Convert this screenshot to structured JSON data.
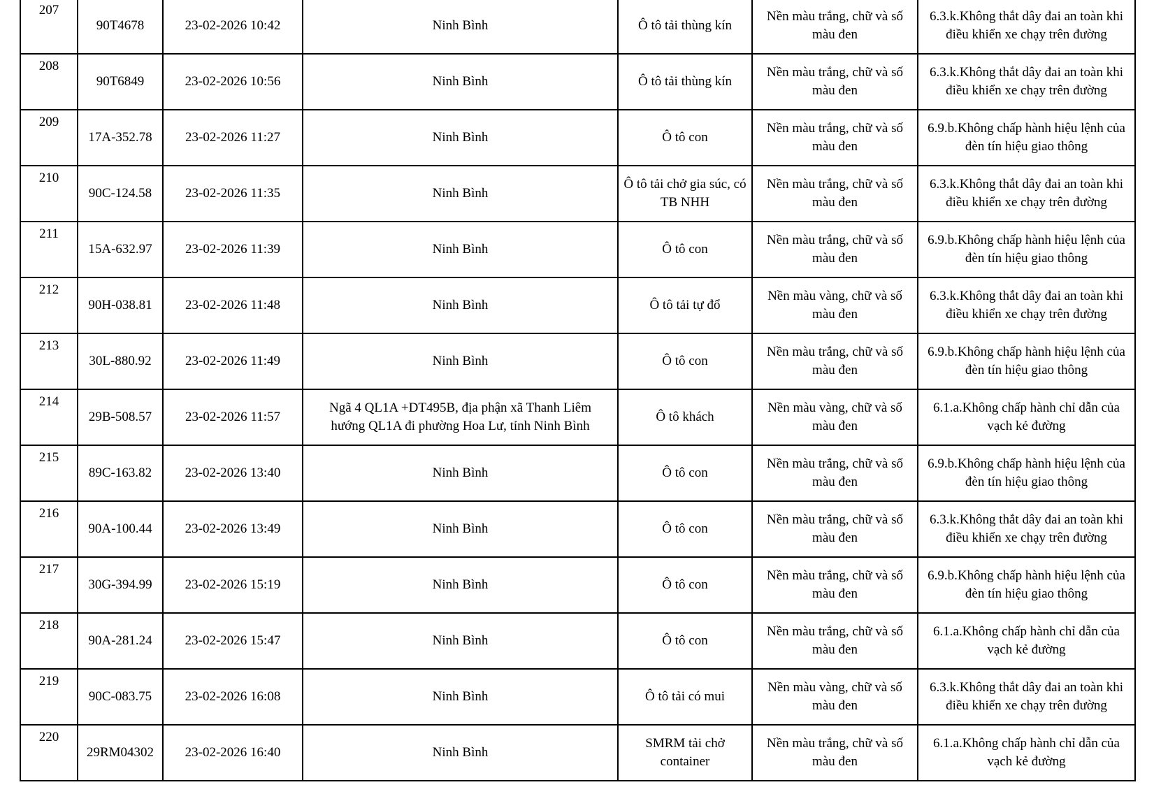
{
  "page": {
    "background_color": "#ffffff",
    "text_color": "#000000",
    "border_color": "#000000"
  },
  "table": {
    "column_keys": [
      "index",
      "plate",
      "datetime",
      "location",
      "vehicle",
      "plate_color",
      "violation"
    ],
    "rows": [
      {
        "index": "207",
        "plate": "90T4678",
        "datetime": "23-02-2026 10:42",
        "location": "Ninh Bình",
        "vehicle": "Ô tô tải thùng kín",
        "plate_color": "Nền màu trắng, chữ và số\nmàu đen",
        "violation": "6.3.k.Không thắt dây đai an toàn khi\nđiều khiển xe chạy trên đường"
      },
      {
        "index": "208",
        "plate": "90T6849",
        "datetime": "23-02-2026 10:56",
        "location": "Ninh Bình",
        "vehicle": "Ô tô tải thùng kín",
        "plate_color": "Nền màu trắng, chữ và số\nmàu đen",
        "violation": "6.3.k.Không thắt dây đai an toàn khi\nđiều khiển xe chạy trên đường"
      },
      {
        "index": "209",
        "plate": "17A-352.78",
        "datetime": "23-02-2026 11:27",
        "location": "Ninh Bình",
        "vehicle": "Ô tô con",
        "plate_color": "Nền màu trắng, chữ và số\nmàu đen",
        "violation": "6.9.b.Không chấp hành hiệu lệnh của\nđèn tín hiệu giao thông"
      },
      {
        "index": "210",
        "plate": "90C-124.58",
        "datetime": "23-02-2026 11:35",
        "location": "Ninh Bình",
        "vehicle": "Ô tô tải chở gia súc, có\nTB NHH",
        "plate_color": "Nền màu trắng, chữ và số\nmàu đen",
        "violation": "6.3.k.Không thắt dây đai an toàn khi\nđiều khiển xe chạy trên đường"
      },
      {
        "index": "211",
        "plate": "15A-632.97",
        "datetime": "23-02-2026 11:39",
        "location": "Ninh Bình",
        "vehicle": "Ô tô con",
        "plate_color": "Nền màu trắng, chữ và số\nmàu đen",
        "violation": "6.9.b.Không chấp hành hiệu lệnh của\nđèn tín hiệu giao thông"
      },
      {
        "index": "212",
        "plate": "90H-038.81",
        "datetime": "23-02-2026 11:48",
        "location": "Ninh Bình",
        "vehicle": "Ô tô tải tự đổ",
        "plate_color": "Nền màu vàng, chữ và số\nmàu đen",
        "violation": "6.3.k.Không thắt dây đai an toàn khi\nđiều khiển xe chạy trên đường"
      },
      {
        "index": "213",
        "plate": "30L-880.92",
        "datetime": "23-02-2026 11:49",
        "location": "Ninh Bình",
        "vehicle": "Ô tô con",
        "plate_color": "Nền màu trắng, chữ và số\nmàu đen",
        "violation": "6.9.b.Không chấp hành hiệu lệnh của\nđèn tín hiệu giao thông"
      },
      {
        "index": "214",
        "plate": "29B-508.57",
        "datetime": "23-02-2026 11:57",
        "location": "Ngã 4 QL1A +DT495B, địa phận xã Thanh Liêm\nhướng QL1A đi phường Hoa Lư, tỉnh Ninh Bình",
        "vehicle": "Ô tô khách",
        "plate_color": "Nền màu vàng, chữ và số\nmàu đen",
        "violation": "6.1.a.Không chấp hành chỉ dẫn của\nvạch kẻ đường"
      },
      {
        "index": "215",
        "plate": "89C-163.82",
        "datetime": "23-02-2026 13:40",
        "location": "Ninh Bình",
        "vehicle": "Ô tô con",
        "plate_color": "Nền màu trắng, chữ và số\nmàu đen",
        "violation": "6.9.b.Không chấp hành hiệu lệnh của\nđèn tín hiệu giao thông"
      },
      {
        "index": "216",
        "plate": "90A-100.44",
        "datetime": "23-02-2026 13:49",
        "location": "Ninh Bình",
        "vehicle": "Ô tô con",
        "plate_color": "Nền màu trắng, chữ và số\nmàu đen",
        "violation": "6.3.k.Không thắt dây đai an toàn khi\nđiều khiển xe chạy trên đường"
      },
      {
        "index": "217",
        "plate": "30G-394.99",
        "datetime": "23-02-2026 15:19",
        "location": "Ninh Bình",
        "vehicle": "Ô tô con",
        "plate_color": "Nền màu trắng, chữ và số\nmàu đen",
        "violation": "6.9.b.Không chấp hành hiệu lệnh của\nđèn tín hiệu giao thông"
      },
      {
        "index": "218",
        "plate": "90A-281.24",
        "datetime": "23-02-2026 15:47",
        "location": "Ninh Bình",
        "vehicle": "Ô tô con",
        "plate_color": "Nền màu trắng, chữ và số\nmàu đen",
        "violation": "6.1.a.Không chấp hành chỉ dẫn của\nvạch kẻ đường"
      },
      {
        "index": "219",
        "plate": "90C-083.75",
        "datetime": "23-02-2026 16:08",
        "location": "Ninh Bình",
        "vehicle": "Ô tô tải có mui",
        "plate_color": "Nền màu vàng, chữ và số\nmàu đen",
        "violation": "6.3.k.Không thắt dây đai an toàn khi\nđiều khiển xe chạy trên đường"
      },
      {
        "index": "220",
        "plate": "29RM04302",
        "datetime": "23-02-2026 16:40",
        "location": "Ninh Bình",
        "vehicle": "SMRM tải chở\ncontainer",
        "plate_color": "Nền màu trắng, chữ và số\nmàu đen",
        "violation": "6.1.a.Không chấp hành chỉ dẫn của\nvạch kẻ đường"
      }
    ]
  }
}
